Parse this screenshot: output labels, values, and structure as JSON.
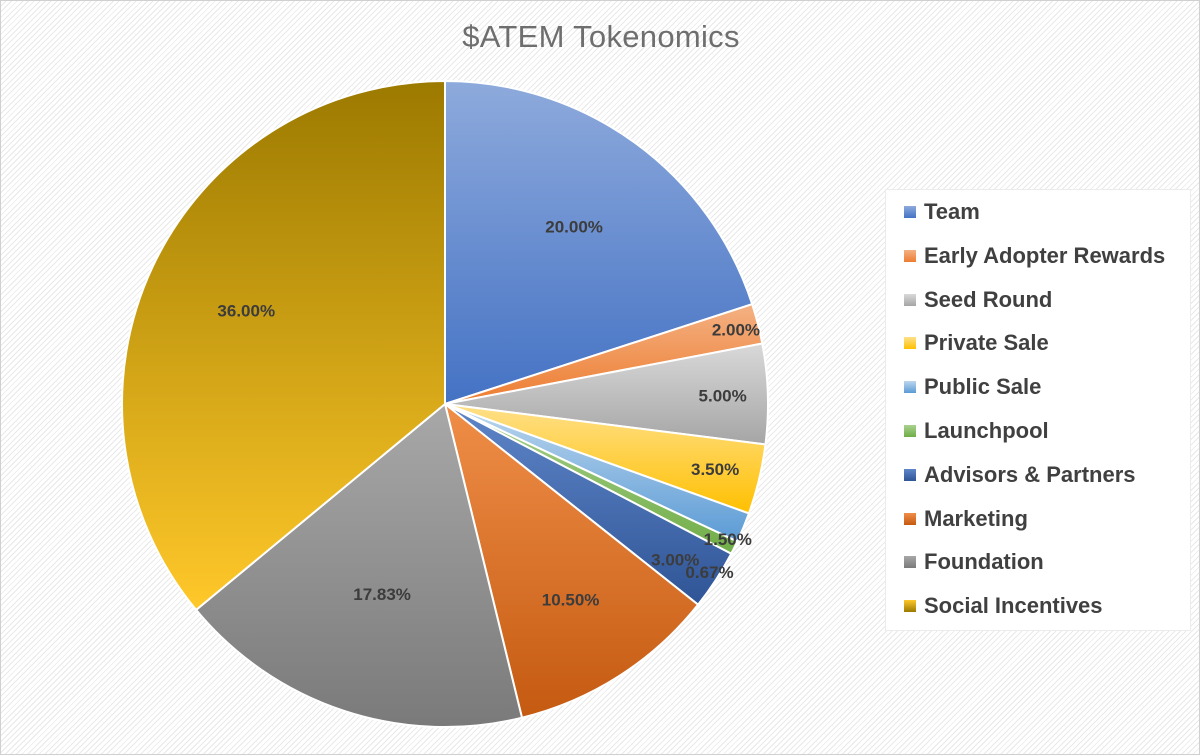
{
  "chart_data": {
    "type": "pie",
    "title": "$ATEM Tokenomics",
    "legend_position": "right",
    "categories": [
      "Team",
      "Early Adopter Rewards",
      "Seed Round",
      "Private Sale",
      "Public Sale",
      "Launchpool",
      "Advisors & Partners",
      "Marketing",
      "Foundation",
      "Social Incentives"
    ],
    "values": [
      20.0,
      2.0,
      5.0,
      3.5,
      1.5,
      0.67,
      3.0,
      10.5,
      17.83,
      36.0
    ],
    "labels": [
      "20.00%",
      "2.00%",
      "5.00%",
      "3.50%",
      "1.50%",
      "0.67%",
      "3.00%",
      "10.50%",
      "17.83%",
      "36.00%"
    ],
    "colors": [
      [
        "#8eaadc",
        "#4472c4"
      ],
      [
        "#f4b183",
        "#ed7d31"
      ],
      [
        "#d9d9d9",
        "#a5a5a5"
      ],
      [
        "#ffe08a",
        "#ffc000"
      ],
      [
        "#bdd7ee",
        "#5b9bd5"
      ],
      [
        "#a9d18e",
        "#70ad47"
      ],
      [
        "#5f86c8",
        "#2f5597"
      ],
      [
        "#ef8e48",
        "#c55a11"
      ],
      [
        "#a8a8a8",
        "#7a7a7a"
      ],
      [
        "#ffc82a",
        "#9c7a00"
      ]
    ]
  }
}
